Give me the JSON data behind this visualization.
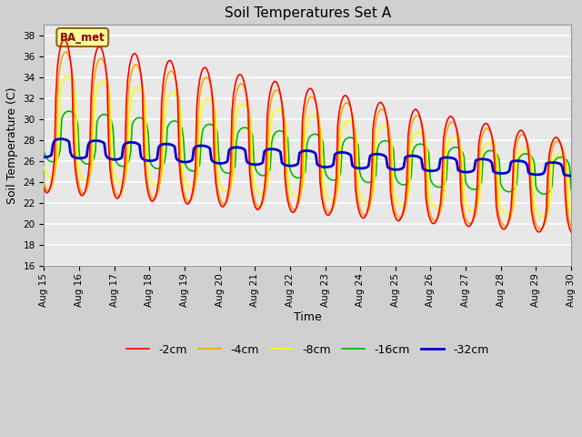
{
  "title": "Soil Temperatures Set A",
  "xlabel": "Time",
  "ylabel": "Soil Temperature (C)",
  "ylim": [
    16,
    39
  ],
  "xlim_days": [
    0,
    15
  ],
  "fig_facecolor": "#d0d0d0",
  "plot_facecolor": "#e8e8e8",
  "grid_color": "white",
  "annotation_text": "BA_met",
  "annotation_color": "#8B0000",
  "annotation_bg": "#FFFF99",
  "annotation_edge": "#8B6914",
  "series": {
    "-2cm": {
      "color": "#FF0000",
      "lw": 1.2,
      "zorder": 5
    },
    "-4cm": {
      "color": "#FFA500",
      "lw": 1.2,
      "zorder": 4
    },
    "-8cm": {
      "color": "#FFFF00",
      "lw": 1.2,
      "zorder": 3
    },
    "-16cm": {
      "color": "#00BB00",
      "lw": 1.2,
      "zorder": 2
    },
    "-32cm": {
      "color": "#0000CD",
      "lw": 2.0,
      "zorder": 6
    }
  },
  "legend_order": [
    "-2cm",
    "-4cm",
    "-8cm",
    "-16cm",
    "-32cm"
  ]
}
